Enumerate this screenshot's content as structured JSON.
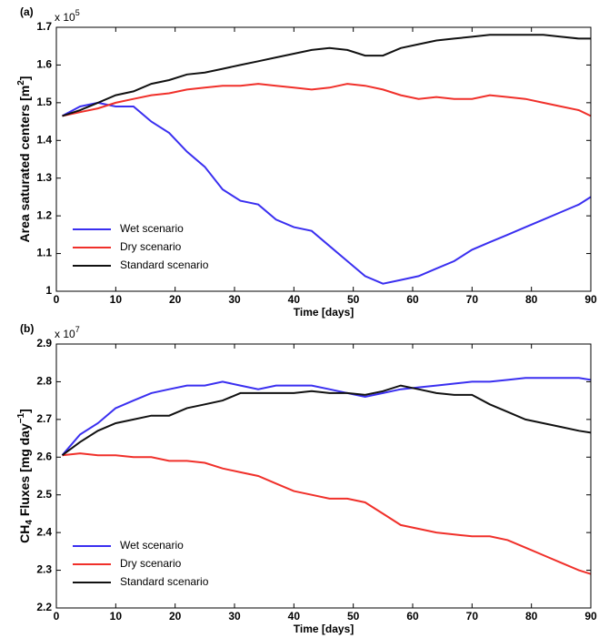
{
  "chart_data": [
    {
      "type": "line",
      "panel_label": "(a)",
      "y_offset_text": [
        "x 10",
        "5"
      ],
      "ylabel": [
        "Area saturated centers [m",
        "2",
        "]"
      ],
      "xlabel": "Time [days]",
      "x": [
        1,
        4,
        7,
        10,
        13,
        16,
        19,
        22,
        25,
        28,
        31,
        34,
        37,
        40,
        43,
        46,
        49,
        52,
        55,
        58,
        61,
        64,
        67,
        70,
        73,
        76,
        79,
        82,
        85,
        88,
        90
      ],
      "xlim": [
        0,
        90
      ],
      "xticks": [
        0,
        10,
        20,
        30,
        40,
        50,
        60,
        70,
        80,
        90
      ],
      "ylim": [
        1,
        1.7
      ],
      "yticks": [
        1,
        1.1,
        1.2,
        1.3,
        1.4,
        1.5,
        1.6,
        1.7
      ],
      "legend": "lower left",
      "series": [
        {
          "name": "Wet scenario",
          "color": "#3a2ff0",
          "values": [
            1.465,
            1.49,
            1.5,
            1.49,
            1.49,
            1.45,
            1.42,
            1.37,
            1.33,
            1.27,
            1.24,
            1.23,
            1.19,
            1.17,
            1.16,
            1.12,
            1.08,
            1.04,
            1.02,
            1.03,
            1.04,
            1.06,
            1.08,
            1.11,
            1.13,
            1.15,
            1.17,
            1.19,
            1.21,
            1.23,
            1.25
          ]
        },
        {
          "name": "Dry scenario",
          "color": "#f0302a",
          "values": [
            1.465,
            1.475,
            1.485,
            1.5,
            1.51,
            1.52,
            1.525,
            1.535,
            1.54,
            1.545,
            1.545,
            1.55,
            1.545,
            1.54,
            1.535,
            1.54,
            1.55,
            1.545,
            1.535,
            1.52,
            1.51,
            1.515,
            1.51,
            1.51,
            1.52,
            1.515,
            1.51,
            1.5,
            1.49,
            1.48,
            1.465
          ]
        },
        {
          "name": "Standard scenario",
          "color": "#111111",
          "values": [
            1.465,
            1.48,
            1.5,
            1.52,
            1.53,
            1.55,
            1.56,
            1.575,
            1.58,
            1.59,
            1.6,
            1.61,
            1.62,
            1.63,
            1.64,
            1.645,
            1.64,
            1.625,
            1.625,
            1.645,
            1.655,
            1.665,
            1.67,
            1.675,
            1.68,
            1.68,
            1.68,
            1.68,
            1.675,
            1.67,
            1.67
          ]
        }
      ]
    },
    {
      "type": "line",
      "panel_label": "(b)",
      "y_offset_text": [
        "x 10",
        "7"
      ],
      "ylabel": [
        "CH",
        "4",
        " Fluxes [mg day",
        "−1",
        "]"
      ],
      "xlabel": "Time [days]",
      "x": [
        1,
        4,
        7,
        10,
        13,
        16,
        19,
        22,
        25,
        28,
        31,
        34,
        37,
        40,
        43,
        46,
        49,
        52,
        55,
        58,
        61,
        64,
        67,
        70,
        73,
        76,
        79,
        82,
        85,
        88,
        90
      ],
      "xlim": [
        0,
        90
      ],
      "xticks": [
        0,
        10,
        20,
        30,
        40,
        50,
        60,
        70,
        80,
        90
      ],
      "ylim": [
        2.2,
        2.9
      ],
      "yticks": [
        2.2,
        2.3,
        2.4,
        2.5,
        2.6,
        2.7,
        2.8,
        2.9
      ],
      "legend": "lower left",
      "series": [
        {
          "name": "Wet scenario",
          "color": "#3a2ff0",
          "values": [
            2.605,
            2.66,
            2.69,
            2.73,
            2.75,
            2.77,
            2.78,
            2.79,
            2.79,
            2.8,
            2.79,
            2.78,
            2.79,
            2.79,
            2.79,
            2.78,
            2.77,
            2.76,
            2.77,
            2.78,
            2.785,
            2.79,
            2.795,
            2.8,
            2.8,
            2.805,
            2.81,
            2.81,
            2.81,
            2.81,
            2.805
          ]
        },
        {
          "name": "Dry scenario",
          "color": "#f0302a",
          "values": [
            2.605,
            2.61,
            2.605,
            2.605,
            2.6,
            2.6,
            2.59,
            2.59,
            2.585,
            2.57,
            2.56,
            2.55,
            2.53,
            2.51,
            2.5,
            2.49,
            2.49,
            2.48,
            2.45,
            2.42,
            2.41,
            2.4,
            2.395,
            2.39,
            2.39,
            2.38,
            2.36,
            2.34,
            2.32,
            2.3,
            2.29
          ]
        },
        {
          "name": "Standard scenario",
          "color": "#111111",
          "values": [
            2.605,
            2.64,
            2.67,
            2.69,
            2.7,
            2.71,
            2.71,
            2.73,
            2.74,
            2.75,
            2.77,
            2.77,
            2.77,
            2.77,
            2.775,
            2.77,
            2.77,
            2.765,
            2.775,
            2.79,
            2.78,
            2.77,
            2.765,
            2.765,
            2.74,
            2.72,
            2.7,
            2.69,
            2.68,
            2.67,
            2.665
          ]
        }
      ]
    }
  ]
}
